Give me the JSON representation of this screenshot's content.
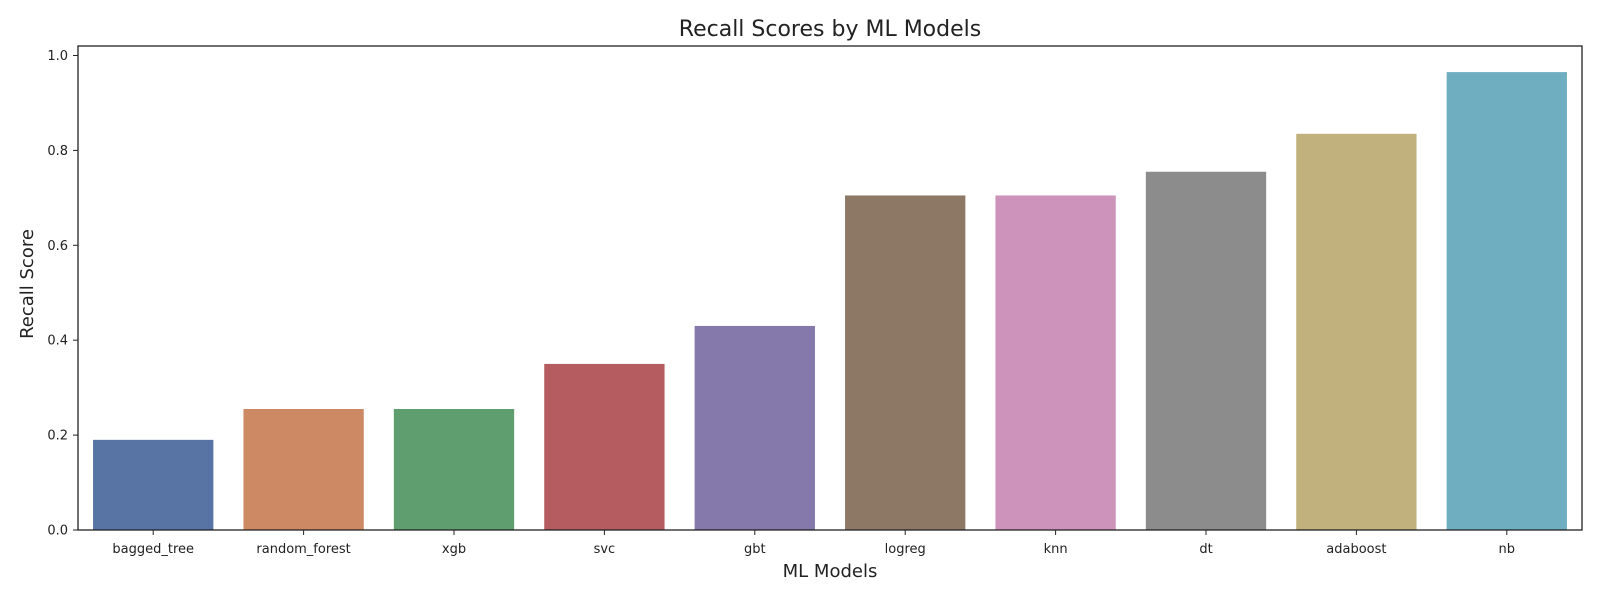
{
  "chart_data": {
    "type": "bar",
    "title": "Recall Scores by ML Models",
    "xlabel": "ML Models",
    "ylabel": "Recall Score",
    "categories": [
      "bagged_tree",
      "random_forest",
      "xgb",
      "svc",
      "gbt",
      "logreg",
      "knn",
      "dt",
      "adaboost",
      "nb"
    ],
    "values": [
      0.19,
      0.255,
      0.255,
      0.35,
      0.43,
      0.705,
      0.705,
      0.755,
      0.835,
      0.965
    ],
    "colors": [
      "#5874a5",
      "#cd8964",
      "#5f9e6e",
      "#b45c5f",
      "#8479aa",
      "#8c7865",
      "#cd93bb",
      "#8c8c8c",
      "#c0b17d",
      "#6faec1"
    ],
    "ylim": [
      0,
      1.02
    ],
    "yticks": [
      "0.0",
      "0.2",
      "0.4",
      "0.6",
      "0.8",
      "1.0"
    ],
    "grid": false,
    "legend": "none"
  }
}
